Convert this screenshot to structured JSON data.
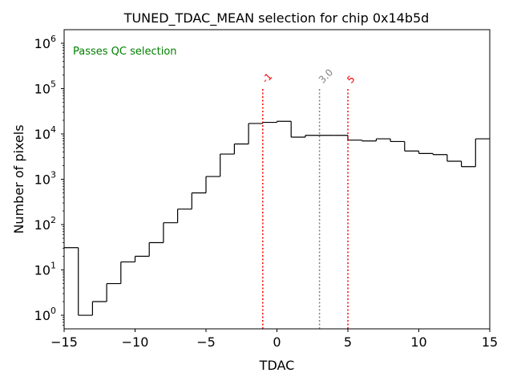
{
  "chart_data": {
    "type": "histogram-step",
    "title": "TUNED_TDAC_MEAN selection for chip 0x14b5d",
    "xlabel": "TDAC",
    "ylabel": "Number of pixels",
    "xlim": [
      -15,
      15
    ],
    "ylim_log10": [
      -0.3,
      6.3
    ],
    "yscale": "log",
    "x_ticks": [
      -15,
      -10,
      -5,
      0,
      5,
      10,
      15
    ],
    "x_tick_labels": [
      "−15",
      "−10",
      "−5",
      "0",
      "5",
      "10",
      "15"
    ],
    "y_tick_exponents": [
      0,
      1,
      2,
      3,
      4,
      5,
      6
    ],
    "y_tick_base": "10",
    "bin_edges": [
      -15,
      -14,
      -13,
      -12,
      -11,
      -10,
      -9,
      -8,
      -7,
      -6,
      -5,
      -4,
      -3,
      -2,
      -1,
      0,
      1,
      2,
      3,
      4,
      5,
      6,
      7,
      8,
      9,
      10,
      11,
      12,
      13,
      14,
      15
    ],
    "counts": [
      31,
      1,
      2,
      5,
      15,
      20,
      40,
      110,
      220,
      500,
      1150,
      3600,
      6000,
      17000,
      18000,
      19000,
      8500,
      9300,
      9300,
      9300,
      7300,
      7000,
      7800,
      6800,
      4200,
      3700,
      3500,
      2500,
      1900,
      7800
    ],
    "line_color": "#000000",
    "vlines": [
      {
        "x": -1,
        "label": "-1",
        "color": "#ff0000",
        "ymax": 100000
      },
      {
        "x": 3,
        "label": "3.0",
        "color": "#808080",
        "ymax": 100000
      },
      {
        "x": 5,
        "label": "5",
        "color": "#ff0000",
        "ymax": 100000
      }
    ],
    "annotation": {
      "text": "Passes QC selection",
      "color": "#008000",
      "position": "top-left"
    }
  }
}
